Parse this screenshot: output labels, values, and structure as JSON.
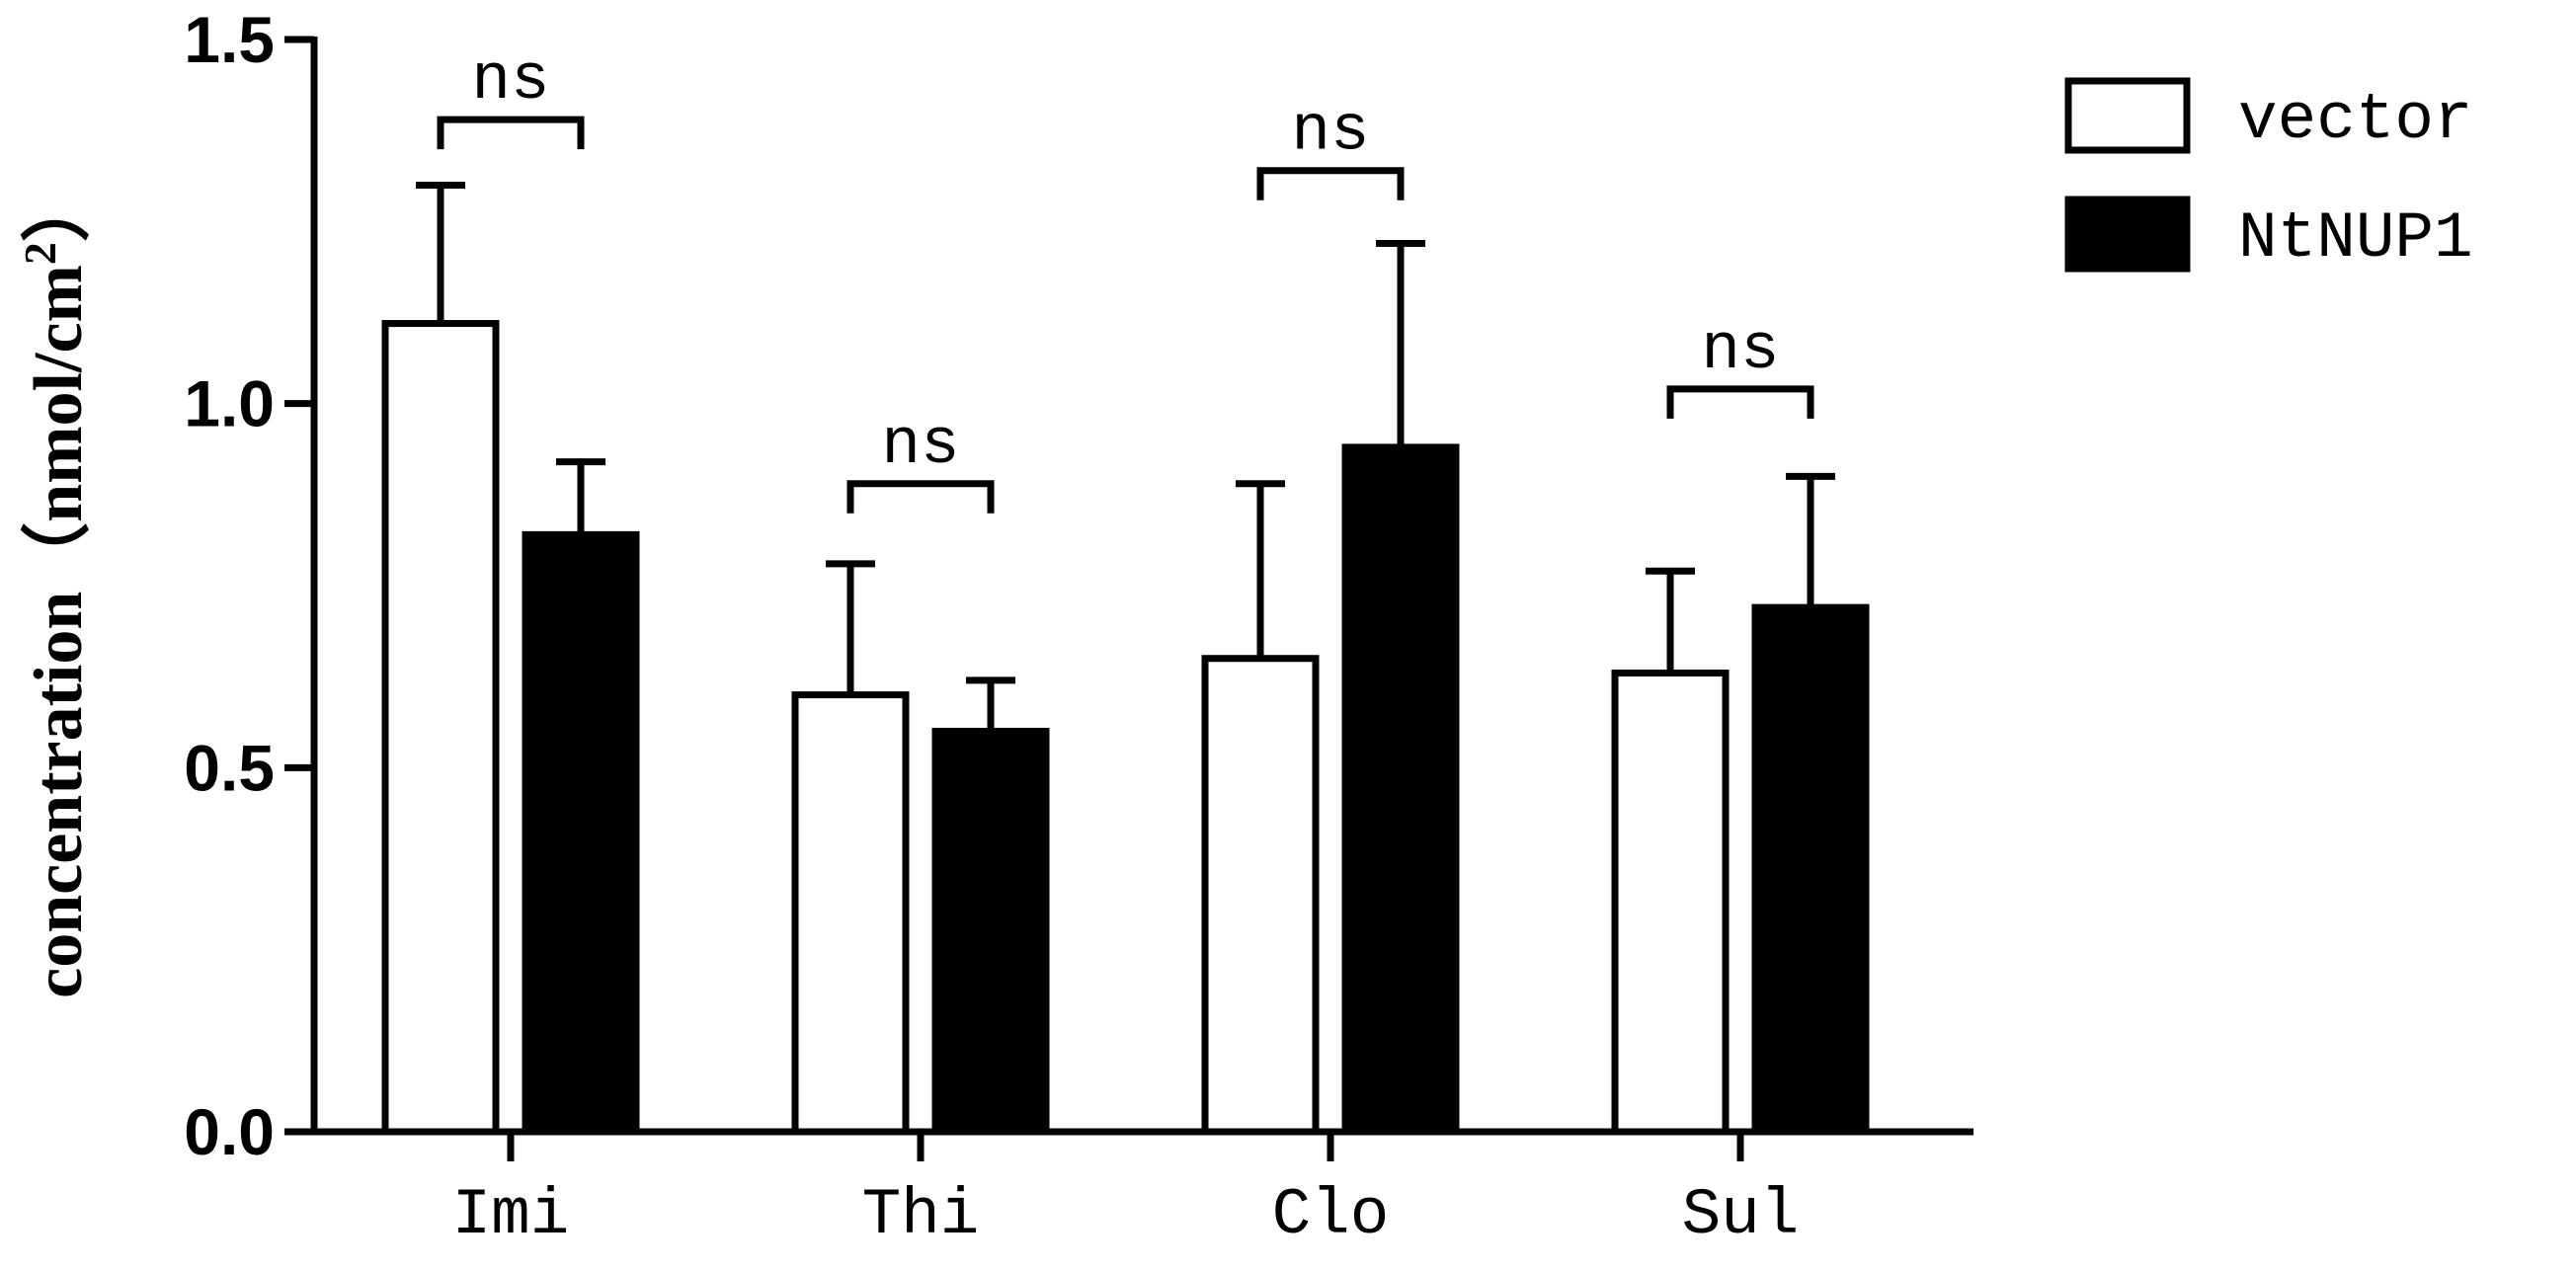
{
  "chart_data": {
    "type": "bar",
    "title": "",
    "xlabel": "",
    "ylabel": "concentration（nmol/cm",
    "ylabel_superscript": "2",
    "ylabel_close": "）",
    "ylim": [
      0,
      1.5
    ],
    "yticks": [
      0.0,
      0.5,
      1.0,
      1.5
    ],
    "ytick_labels": [
      "0.0",
      "0.5",
      "1.0",
      "1.5"
    ],
    "categories": [
      "Imi",
      "Thi",
      "Clo",
      "Sul"
    ],
    "series": [
      {
        "name": "vector",
        "fill": "#ffffff",
        "values": [
          1.11,
          0.6,
          0.65,
          0.63
        ],
        "errors": [
          0.19,
          0.18,
          0.24,
          0.14
        ]
      },
      {
        "name": "NtNUP1",
        "fill": "#000000",
        "values": [
          0.82,
          0.55,
          0.94,
          0.72
        ],
        "errors": [
          0.1,
          0.07,
          0.28,
          0.18
        ]
      }
    ],
    "significance": [
      {
        "category": "Imi",
        "label": "ns",
        "level": 1.39
      },
      {
        "category": "Thi",
        "label": "ns",
        "level": 0.89
      },
      {
        "category": "Clo",
        "label": "ns",
        "level": 1.32
      },
      {
        "category": "Sul",
        "label": "ns",
        "level": 1.02
      }
    ],
    "legend_position": "top-right",
    "grid": false
  }
}
